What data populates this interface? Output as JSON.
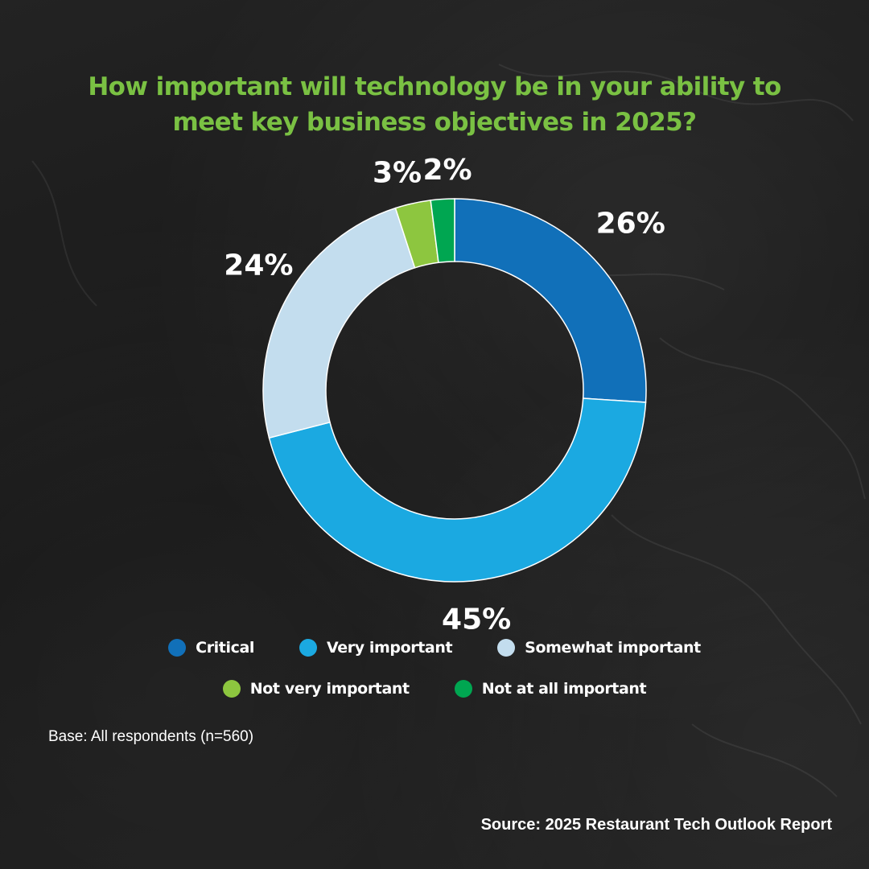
{
  "title": "How important will technology be in your ability to meet key business objectives in 2025?",
  "chart_data": {
    "type": "pie",
    "donut": true,
    "title": "How important will technology be in your ability to meet key business objectives in 2025?",
    "legend_placement": "bottom",
    "slices": [
      {
        "label": "Critical",
        "value": 26,
        "value_label": "26%",
        "color": "#1170b9"
      },
      {
        "label": "Very important",
        "value": 45,
        "value_label": "45%",
        "color": "#1ba9e1"
      },
      {
        "label": "Somewhat important",
        "value": 24,
        "value_label": "24%",
        "color": "#c3ddee"
      },
      {
        "label": "Not very important",
        "value": 3,
        "value_label": "3%",
        "color": "#8dc63f"
      },
      {
        "label": "Not at all important",
        "value": 2,
        "value_label": "2%",
        "color": "#00a651"
      }
    ]
  },
  "note": "Base: All respondents (n=560)",
  "source": "Source: 2025 Restaurant Tech Outlook Report",
  "colors": {
    "title": "#7ac143",
    "background": "#1c1c1c"
  }
}
